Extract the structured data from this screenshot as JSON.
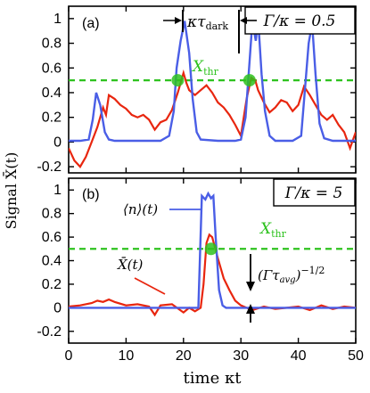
{
  "chart_data": [
    {
      "type": "line",
      "panel_label": "(a)",
      "ratio_label": "Γ/κ = 0.5",
      "threshold_label": "X",
      "threshold_sub": "thr",
      "tau_label_prefix": "κτ",
      "tau_label_sub": "dark",
      "xlim": [
        0,
        50
      ],
      "ylim": [
        -0.25,
        1.1
      ],
      "threshold": 0.5,
      "threshold_color": "#2ec21f",
      "yticks": [
        -0.2,
        0,
        0.2,
        0.4,
        0.6,
        0.8,
        1
      ],
      "ytick_labels": [
        "-0.2",
        "0",
        "0.2",
        "0.4",
        "0.6",
        "0.8",
        "1"
      ],
      "crossings": [
        [
          19,
          0.5
        ],
        [
          31.5,
          0.5
        ]
      ],
      "dark_interval": [
        18.5,
        30.8
      ],
      "series": [
        {
          "color": "#4a5ee6",
          "x": [
            0,
            2,
            3.5,
            4.2,
            4.8,
            5.5,
            6.3,
            7,
            8,
            12,
            16,
            17.5,
            18.3,
            18.8,
            19.5,
            20.2,
            21,
            21.6,
            22.3,
            23,
            26,
            29,
            30,
            30.8,
            31.5,
            32,
            32.6,
            33,
            33.6,
            34.2,
            35,
            36,
            39,
            40.5,
            41.2,
            41.8,
            42.4,
            43,
            43.7,
            44.5,
            46,
            50
          ],
          "y": [
            0.01,
            0.01,
            0.02,
            0.18,
            0.4,
            0.3,
            0.08,
            0.02,
            0.01,
            0.01,
            0.01,
            0.05,
            0.25,
            0.6,
            0.82,
            0.98,
            0.72,
            0.35,
            0.08,
            0.02,
            0.01,
            0.01,
            0.02,
            0.2,
            0.65,
            0.98,
            0.82,
            1.0,
            0.55,
            0.25,
            0.05,
            0.01,
            0.01,
            0.05,
            0.45,
            0.8,
            0.96,
            0.55,
            0.15,
            0.03,
            0.01,
            0.01
          ]
        },
        {
          "color": "#e8260f",
          "x": [
            0,
            1,
            2,
            3,
            4,
            5,
            5.5,
            6,
            6.5,
            7,
            8,
            9,
            10,
            11,
            12,
            13,
            14,
            15,
            16,
            17,
            18,
            19,
            20,
            20.5,
            21,
            22,
            23,
            24,
            25,
            26,
            27,
            28,
            29,
            30,
            31,
            31.8,
            32.5,
            33,
            34,
            35,
            36,
            37,
            38,
            39,
            40,
            41,
            42,
            43,
            44,
            45,
            46,
            47,
            48,
            49,
            50
          ],
          "y": [
            -0.05,
            -0.15,
            -0.2,
            -0.12,
            0.0,
            0.12,
            0.2,
            0.28,
            0.22,
            0.38,
            0.35,
            0.3,
            0.27,
            0.22,
            0.2,
            0.22,
            0.18,
            0.1,
            0.16,
            0.18,
            0.26,
            0.4,
            0.56,
            0.48,
            0.42,
            0.38,
            0.42,
            0.46,
            0.4,
            0.32,
            0.28,
            0.22,
            0.14,
            0.05,
            0.35,
            0.52,
            0.5,
            0.42,
            0.32,
            0.24,
            0.28,
            0.34,
            0.32,
            0.25,
            0.3,
            0.45,
            0.38,
            0.3,
            0.22,
            0.18,
            0.22,
            0.14,
            0.08,
            -0.05,
            0.08
          ]
        }
      ]
    },
    {
      "type": "line",
      "panel_label": "(b)",
      "ratio_label": "Γ/κ = 5",
      "threshold_label": "X",
      "threshold_sub": "thr",
      "n_label": "⟨n⟩(t)",
      "x_label": "X̄(t)",
      "avg_label": "(Γτ",
      "avg_label_sub": "avg",
      "avg_label_exp": "−1/2",
      "xlim": [
        0,
        50
      ],
      "ylim": [
        -0.3,
        1.1
      ],
      "threshold": 0.5,
      "threshold_color": "#2ec21f",
      "yticks": [
        -0.2,
        0,
        0.2,
        0.4,
        0.6,
        0.8,
        1
      ],
      "ytick_labels": [
        "-0.2",
        "0",
        "0.2",
        "0.4",
        "0.6",
        "0.8",
        "1"
      ],
      "crossings": [
        [
          24.8,
          0.5
        ]
      ],
      "series": [
        {
          "color": "#4a5ee6",
          "x": [
            0,
            15,
            20,
            22.6,
            23.2,
            23.8,
            24.3,
            24.8,
            25.2,
            25.6,
            26.2,
            26.8,
            27.4,
            30,
            50
          ],
          "y": [
            0,
            0,
            0,
            0,
            0.95,
            0.92,
            0.97,
            0.93,
            0.95,
            0.6,
            0.15,
            0.02,
            0,
            0,
            0
          ]
        },
        {
          "color": "#e8260f",
          "x": [
            0,
            2,
            4,
            5,
            6,
            7,
            8,
            10,
            12,
            14,
            15,
            16,
            18,
            20,
            21,
            22,
            23,
            23.5,
            24,
            24.5,
            25,
            26,
            27,
            28,
            29,
            30,
            31,
            32,
            34,
            36,
            38,
            40,
            42,
            44,
            46,
            48,
            50
          ],
          "y": [
            0.01,
            0.02,
            0.04,
            0.06,
            0.05,
            0.07,
            0.05,
            0.02,
            0.03,
            0.01,
            -0.06,
            0.02,
            0.03,
            -0.04,
            0.0,
            -0.03,
            0.0,
            0.2,
            0.55,
            0.62,
            0.6,
            0.42,
            0.25,
            0.15,
            0.06,
            0.02,
            0.0,
            -0.02,
            0.01,
            -0.01,
            0.0,
            0.01,
            -0.02,
            0.02,
            -0.01,
            0.01,
            0.0
          ]
        }
      ]
    }
  ],
  "xaxis": {
    "label": "time κt",
    "ticks": [
      0,
      10,
      20,
      30,
      40,
      50
    ],
    "tick_labels": [
      "0",
      "10",
      "20",
      "30",
      "40",
      "50"
    ]
  },
  "yaxis": {
    "label": "Signal X̄(t)"
  }
}
